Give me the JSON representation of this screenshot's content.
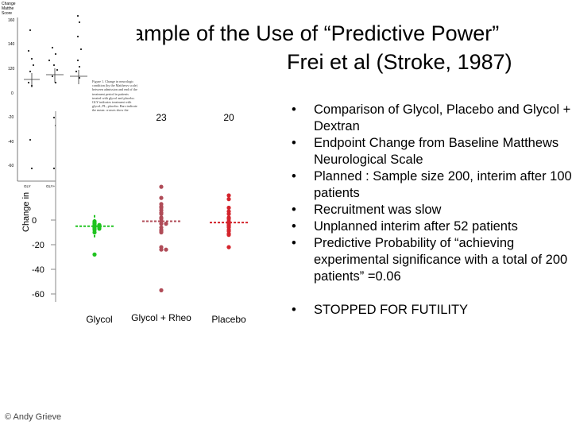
{
  "slide": {
    "title_line1": "ample of the Use of “Predictive Power”",
    "title_line2": "Frei et al (Stroke, 1987)",
    "footer": "© Andy Grieve"
  },
  "bullets": [
    "Comparison of Glycol, Placebo and Glycol + Dextran",
    "Endpoint Change from Baseline Matthews Neurological Scale",
    "Planned : Sample size 200, interim after 100 patients",
    "Recruitment was slow",
    "Unplanned interim after 52 patients",
    "Predictive Probability of “achieving experimental significance with a total of 200 patients” =0.06",
    "STOPPED FOR FUTILITY"
  ],
  "bullet_symbol": "•",
  "scan_figure": {
    "ylabel_lines": [
      "Change",
      "Matthe",
      "Score"
    ],
    "ytick_labels": [
      "160",
      "140",
      "120",
      "0",
      "-20",
      "-40",
      "-60"
    ],
    "xtick_labels": [
      "GLY",
      "GLY+HES",
      "PL"
    ],
    "caption": "Figure 1. Change in neurologic condition (by the Matthews scale) between admission and end of the treatment period in patients treated with glycol and placebo. GLY indicates treatment with glycol; PL, placebo. Bars indicate the mean; crosses show the median ± interquartile range."
  },
  "chart_data": {
    "type": "scatter",
    "title": "",
    "xlabel": "",
    "ylabel": "Change in",
    "categories": [
      "Glycol",
      "Glycol + Rheo",
      "Placebo"
    ],
    "ytick_labels": [
      "0",
      "-20",
      "-40",
      "-60"
    ],
    "ylim": [
      -65,
      50
    ],
    "group_counts": [
      "",
      "23",
      "20"
    ],
    "grid": false,
    "colors": {
      "Glycol": "#1fc31f",
      "Glycol + Rheo": "#b04c58",
      "Placebo": "#d4242c"
    },
    "series": [
      {
        "category": "Glycol",
        "values": [
          -10,
          -8,
          -7,
          -7,
          -6,
          -6,
          -5,
          -5,
          -4,
          -4,
          -3,
          -2,
          -1,
          -28
        ]
      },
      {
        "category": "Glycol + Rheo",
        "values": [
          27,
          18,
          13,
          11,
          10,
          8,
          6,
          5,
          2,
          1,
          -1,
          -3,
          -3,
          -6,
          -8,
          -9,
          -10,
          -22,
          -24,
          -24,
          -57
        ]
      },
      {
        "category": "Placebo",
        "values": [
          20,
          17,
          10,
          7,
          5,
          2,
          1,
          -1,
          -2,
          -3,
          -4,
          -5,
          -6,
          -8,
          -9,
          -11,
          -12,
          -22
        ]
      }
    ]
  }
}
